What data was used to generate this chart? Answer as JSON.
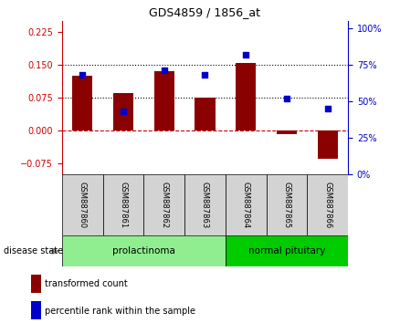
{
  "title": "GDS4859 / 1856_at",
  "samples": [
    "GSM887860",
    "GSM887861",
    "GSM887862",
    "GSM887863",
    "GSM887864",
    "GSM887865",
    "GSM887866"
  ],
  "transformed_count": [
    0.125,
    0.085,
    0.135,
    0.075,
    0.155,
    -0.008,
    -0.065
  ],
  "percentile_rank": [
    68,
    43,
    71,
    68,
    82,
    52,
    45
  ],
  "left_ylim": [
    -0.1,
    0.25
  ],
  "right_ylim": [
    0,
    105
  ],
  "left_yticks": [
    -0.075,
    0,
    0.075,
    0.15,
    0.225
  ],
  "right_yticks": [
    0,
    25,
    50,
    75,
    100
  ],
  "hlines": [
    0.075,
    0.15
  ],
  "bar_color": "#8B0000",
  "dot_color": "#0000CC",
  "zero_line_color": "#cc0000",
  "hline_color": "black",
  "groups": [
    {
      "label": "prolactinoma",
      "samples": [
        0,
        1,
        2,
        3
      ],
      "color": "#90EE90"
    },
    {
      "label": "normal pituitary",
      "samples": [
        4,
        5,
        6
      ],
      "color": "#00CC00"
    }
  ],
  "disease_label": "disease state",
  "legend_items": [
    {
      "label": "transformed count",
      "color": "#8B0000"
    },
    {
      "label": "percentile rank within the sample",
      "color": "#0000CC"
    }
  ]
}
